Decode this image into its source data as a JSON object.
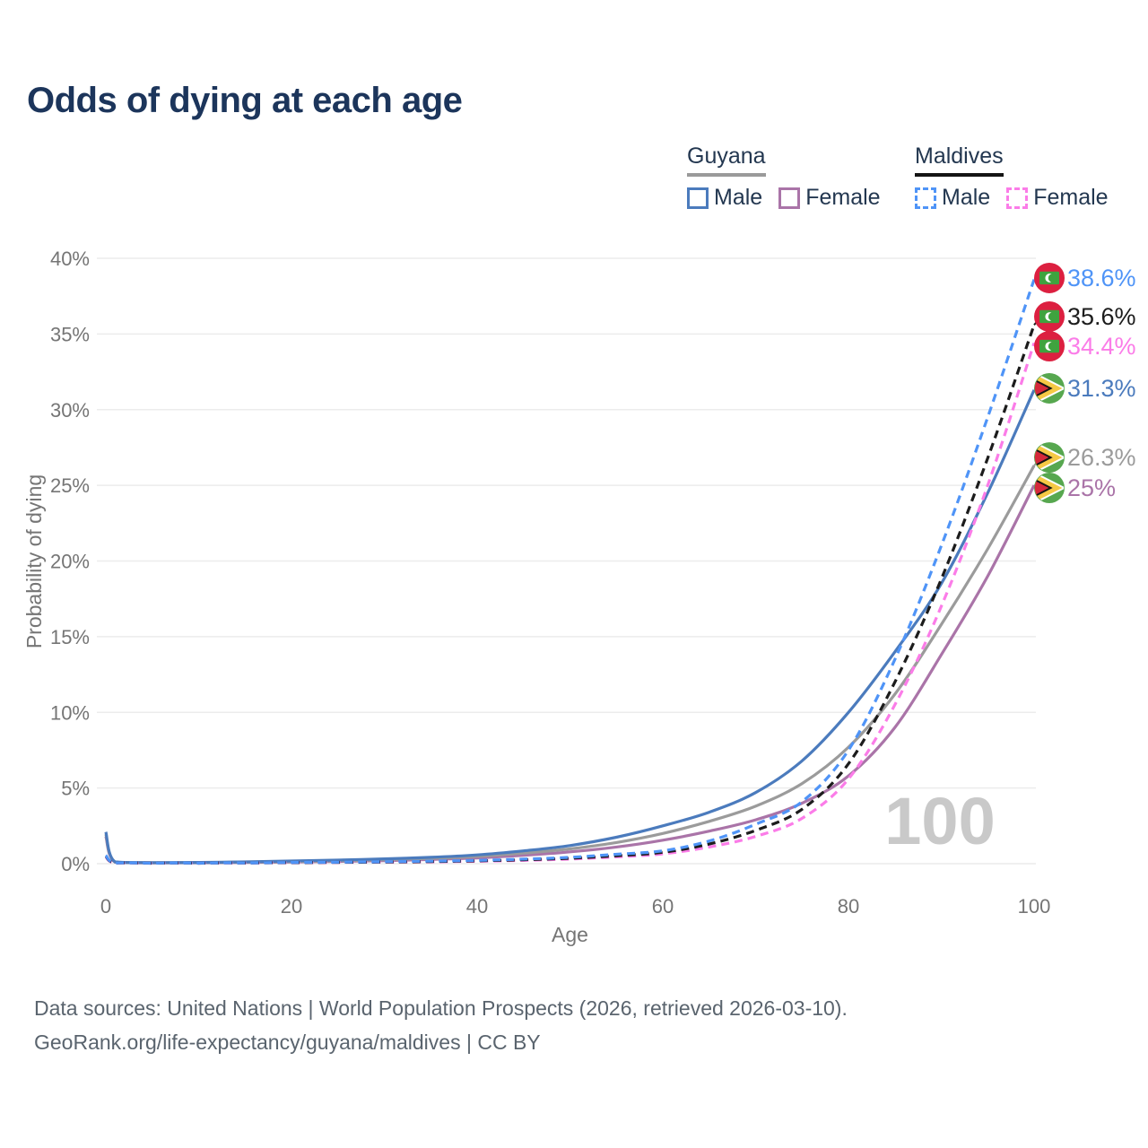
{
  "title": "Odds of dying at each age",
  "watermark": "100",
  "colors": {
    "title_text": "#1c355b",
    "legend_text": "#233750",
    "axis_text": "#757575",
    "gridline": "#ececec",
    "watermark_text": "#c9c9c9",
    "footer_text": "#5a646e"
  },
  "legend": {
    "groups": [
      {
        "country": "Guyana",
        "line_style": "solid",
        "underline_color": "#9a9a9a",
        "items": [
          {
            "label": "Male",
            "color": "#4b7bbd"
          },
          {
            "label": "Female",
            "color": "#aa74a8"
          }
        ]
      },
      {
        "country": "Maldives",
        "line_style": "dashed",
        "underline_color": "#141414",
        "items": [
          {
            "label": "Male",
            "color": "#4f94f7"
          },
          {
            "label": "Female",
            "color": "#fb7ce8"
          }
        ]
      }
    ]
  },
  "flag_colors": {
    "maldives": {
      "bg": "#dc2040",
      "panel": "#3fa33f",
      "crescent": "#ffffff"
    },
    "guyana": {
      "bg": "#57a74f",
      "chevron": "#f6c945",
      "chevron_border": "#ffffff",
      "triangle": "#d5293a",
      "triangle_border": "#151515"
    }
  },
  "chart_data": {
    "type": "line",
    "title": "Odds of dying at each age",
    "xlabel": "Age",
    "ylabel": "Probability of dying",
    "xlim": [
      0,
      100
    ],
    "ylim": [
      0,
      40
    ],
    "x_ticks": [
      0,
      20,
      40,
      60,
      80,
      100
    ],
    "y_ticks_percent": [
      0,
      5,
      10,
      15,
      20,
      25,
      30,
      35,
      40
    ],
    "y_tick_suffix": "%",
    "grid": true,
    "x": [
      0,
      1,
      5,
      10,
      15,
      20,
      25,
      30,
      35,
      40,
      45,
      50,
      55,
      60,
      65,
      70,
      75,
      80,
      85,
      90,
      95,
      100
    ],
    "series": [
      {
        "name": "Maldives Male",
        "country": "Maldives",
        "sex": "male",
        "flag": "maldives",
        "color": "#4f94f7",
        "dash": true,
        "end_label": "38.6%",
        "label_at": 38.7,
        "values": [
          0.55,
          0.05,
          0.03,
          0.035,
          0.05,
          0.08,
          0.1,
          0.13,
          0.17,
          0.22,
          0.3,
          0.42,
          0.62,
          0.85,
          1.5,
          2.6,
          4.1,
          7.5,
          13.5,
          21.0,
          29.5,
          38.6
        ]
      },
      {
        "name": "Maldives Both sexes",
        "country": "Maldives",
        "sex": "both",
        "flag": "maldives",
        "color": "#1c1c1c",
        "dash": true,
        "end_label": "35.6%",
        "label_at": 36.15,
        "values": [
          0.5,
          0.045,
          0.027,
          0.03,
          0.045,
          0.07,
          0.09,
          0.11,
          0.14,
          0.19,
          0.26,
          0.36,
          0.53,
          0.75,
          1.3,
          2.2,
          3.6,
          6.6,
          12.0,
          18.8,
          26.8,
          35.6
        ]
      },
      {
        "name": "Maldives Female",
        "country": "Maldives",
        "sex": "female",
        "flag": "maldives",
        "color": "#fb7ce8",
        "dash": true,
        "end_label": "34.4%",
        "label_at": 34.19,
        "values": [
          0.45,
          0.04,
          0.025,
          0.028,
          0.04,
          0.06,
          0.08,
          0.1,
          0.12,
          0.16,
          0.22,
          0.31,
          0.45,
          0.65,
          1.1,
          1.8,
          3.0,
          5.6,
          10.5,
          17.0,
          25.0,
          34.4
        ]
      },
      {
        "name": "Guyana Male",
        "country": "Guyana",
        "sex": "male",
        "flag": "guyana",
        "color": "#4b7bbd",
        "dash": false,
        "end_label": "31.3%",
        "label_at": 31.41,
        "values": [
          2.1,
          0.12,
          0.07,
          0.08,
          0.12,
          0.18,
          0.24,
          0.32,
          0.42,
          0.58,
          0.85,
          1.2,
          1.75,
          2.5,
          3.4,
          4.7,
          6.8,
          10.0,
          14.0,
          18.5,
          24.5,
          31.3
        ]
      },
      {
        "name": "Guyana Both sexes",
        "country": "Guyana",
        "sex": "both",
        "flag": "guyana",
        "color": "#9b9b9b",
        "dash": false,
        "end_label": "26.3%",
        "label_at": 26.84,
        "values": [
          1.95,
          0.11,
          0.06,
          0.07,
          0.1,
          0.14,
          0.19,
          0.26,
          0.35,
          0.48,
          0.7,
          0.98,
          1.4,
          2.0,
          2.8,
          3.8,
          5.3,
          7.7,
          11.2,
          15.8,
          20.8,
          26.3
        ]
      },
      {
        "name": "Guyana Female",
        "country": "Guyana",
        "sex": "female",
        "flag": "guyana",
        "color": "#aa74a8",
        "dash": false,
        "end_label": "25%",
        "label_at": 24.83,
        "values": [
          1.8,
          0.1,
          0.05,
          0.06,
          0.08,
          0.11,
          0.15,
          0.2,
          0.28,
          0.38,
          0.55,
          0.78,
          1.1,
          1.55,
          2.15,
          2.9,
          4.0,
          5.8,
          9.0,
          13.8,
          19.0,
          25.0
        ]
      }
    ]
  },
  "footer": {
    "line1": "Data sources: United Nations | World Population Prospects (2026, retrieved 2026-03-10).",
    "line2": "GeoRank.org/life-expectancy/guyana/maldives | CC BY"
  }
}
